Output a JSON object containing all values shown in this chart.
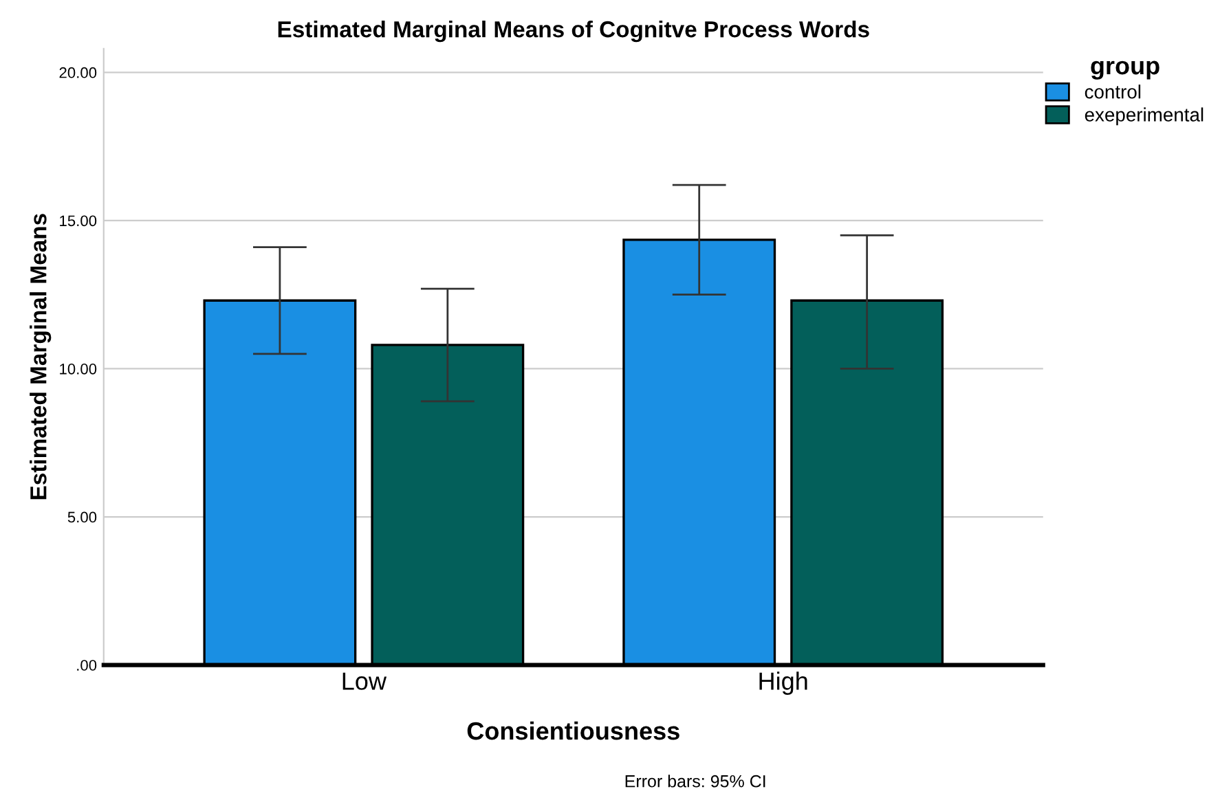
{
  "chart_data": {
    "type": "bar",
    "title": "Estimated Marginal Means of Cognitve Process Words",
    "xlabel": "Consientiousness",
    "ylabel": "Estimated Marginal Means",
    "legend_title": "group",
    "categories": [
      "Low",
      "High"
    ],
    "series": [
      {
        "name": "control",
        "color": "#1a8fe3",
        "values": [
          12.3,
          14.35
        ],
        "errors": [
          [
            10.5,
            14.1
          ],
          [
            12.5,
            16.2
          ]
        ]
      },
      {
        "name": "exeperimental",
        "color": "#035f5a",
        "values": [
          10.8,
          12.3
        ],
        "errors": [
          [
            8.9,
            12.7
          ],
          [
            10.0,
            14.5
          ]
        ]
      }
    ],
    "ylim": [
      0,
      20.8
    ],
    "yticks": [
      {
        "value": 0,
        "label": ".00"
      },
      {
        "value": 5,
        "label": "5.00"
      },
      {
        "value": 10,
        "label": "10.00"
      },
      {
        "value": 15,
        "label": "15.00"
      },
      {
        "value": 20,
        "label": "20.00"
      }
    ],
    "grid": "y",
    "legend": "top right",
    "annotations": [
      "Error bars: 95% CI"
    ]
  }
}
